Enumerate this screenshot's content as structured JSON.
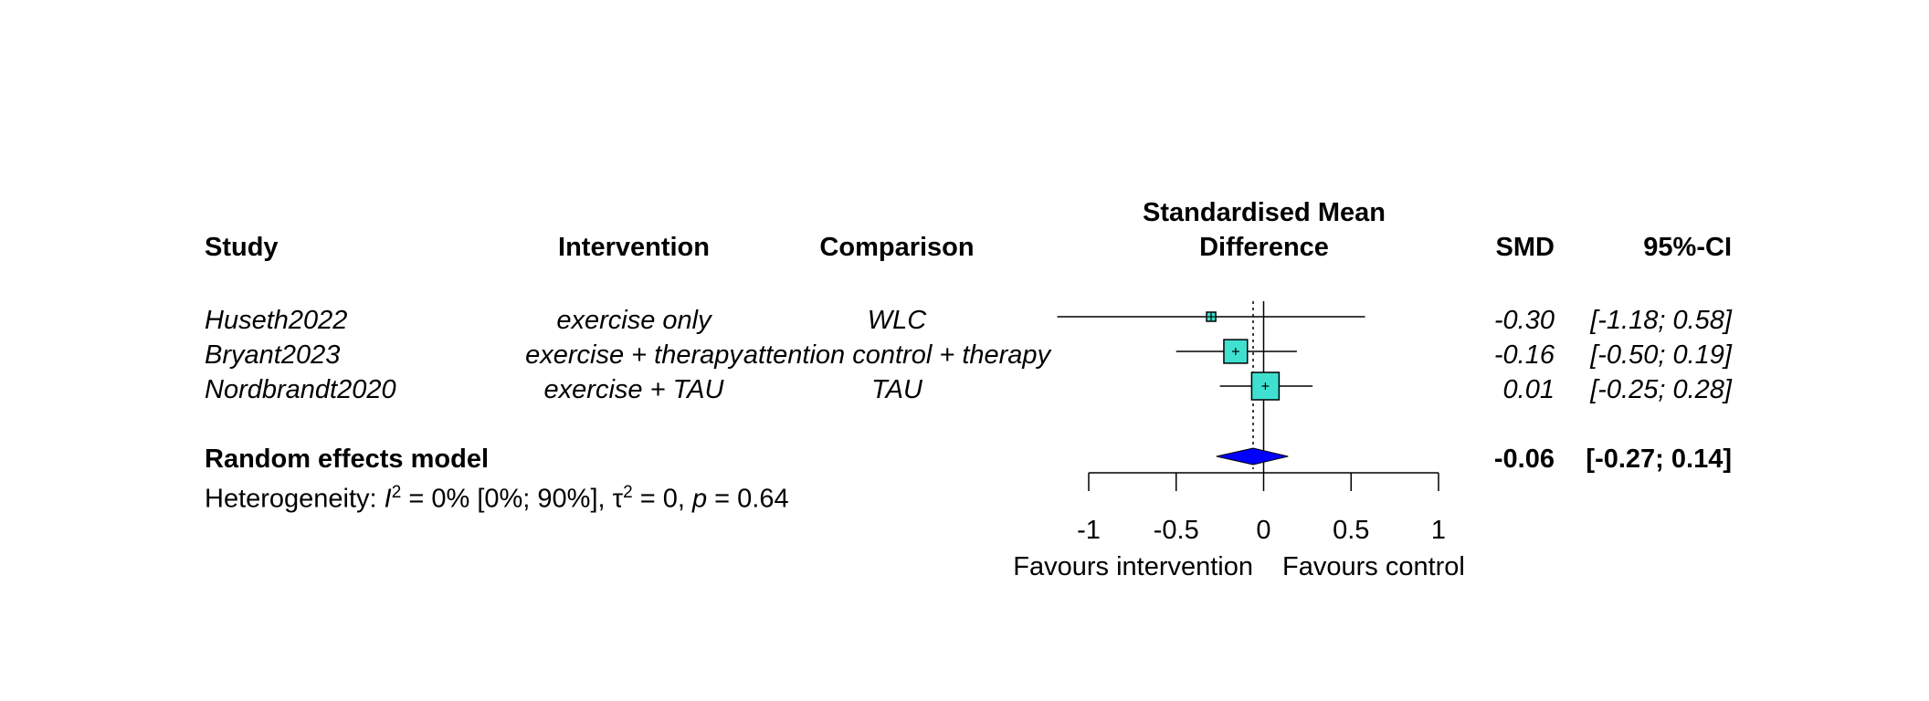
{
  "chart_data": {
    "type": "forest",
    "columns": {
      "study": "Study",
      "intervention": "Intervention",
      "comparison": "Comparison",
      "effect_title_line1": "Standardised Mean",
      "effect_title_line2": "Difference",
      "smd": "SMD",
      "ci": "95%-CI"
    },
    "studies": [
      {
        "study": "Huseth2022",
        "intervention": "exercise only",
        "comparison": "WLC",
        "smd": -0.3,
        "lower": -1.18,
        "upper": 0.58,
        "smd_label": "-0.30",
        "ci_label": "[-1.18; 0.58]",
        "weight": 0.06
      },
      {
        "study": "Bryant2023",
        "intervention": "exercise + therapy",
        "comparison": "attention control + therapy",
        "smd": -0.16,
        "lower": -0.5,
        "upper": 0.19,
        "smd_label": "-0.16",
        "ci_label": "[-0.50; 0.19]",
        "weight": 0.4
      },
      {
        "study": "Nordbrandt2020",
        "intervention": "exercise + TAU",
        "comparison": "TAU",
        "smd": 0.01,
        "lower": -0.25,
        "upper": 0.28,
        "smd_label": "0.01",
        "ci_label": "[-0.25; 0.28]",
        "weight": 0.54
      }
    ],
    "pooled": {
      "label": "Random effects model",
      "smd": -0.06,
      "lower": -0.27,
      "upper": 0.14,
      "smd_label": "-0.06",
      "ci_label": "[-0.27; 0.14]"
    },
    "heterogeneity": {
      "prefix": "Heterogeneity: ",
      "i2_symbol": "I",
      "i2_value": " = 0% [0%; 90%], ",
      "tau2_symbol": "τ",
      "tau2_value": " = 0, ",
      "p_symbol": "p",
      "p_value": " = 0.64",
      "superscript": "2"
    },
    "x_axis": {
      "xlim": [
        -1,
        1
      ],
      "ticks": [
        -1,
        -0.5,
        0,
        0.5,
        1
      ],
      "tick_labels": [
        "-1",
        "-0.5",
        "0",
        "0.5",
        "1"
      ],
      "label_left": "Favours intervention",
      "label_right": "Favours control"
    },
    "colors": {
      "study_box": "#40E0D0",
      "pooled_diamond": "#0000FF",
      "line": "#000000"
    }
  }
}
